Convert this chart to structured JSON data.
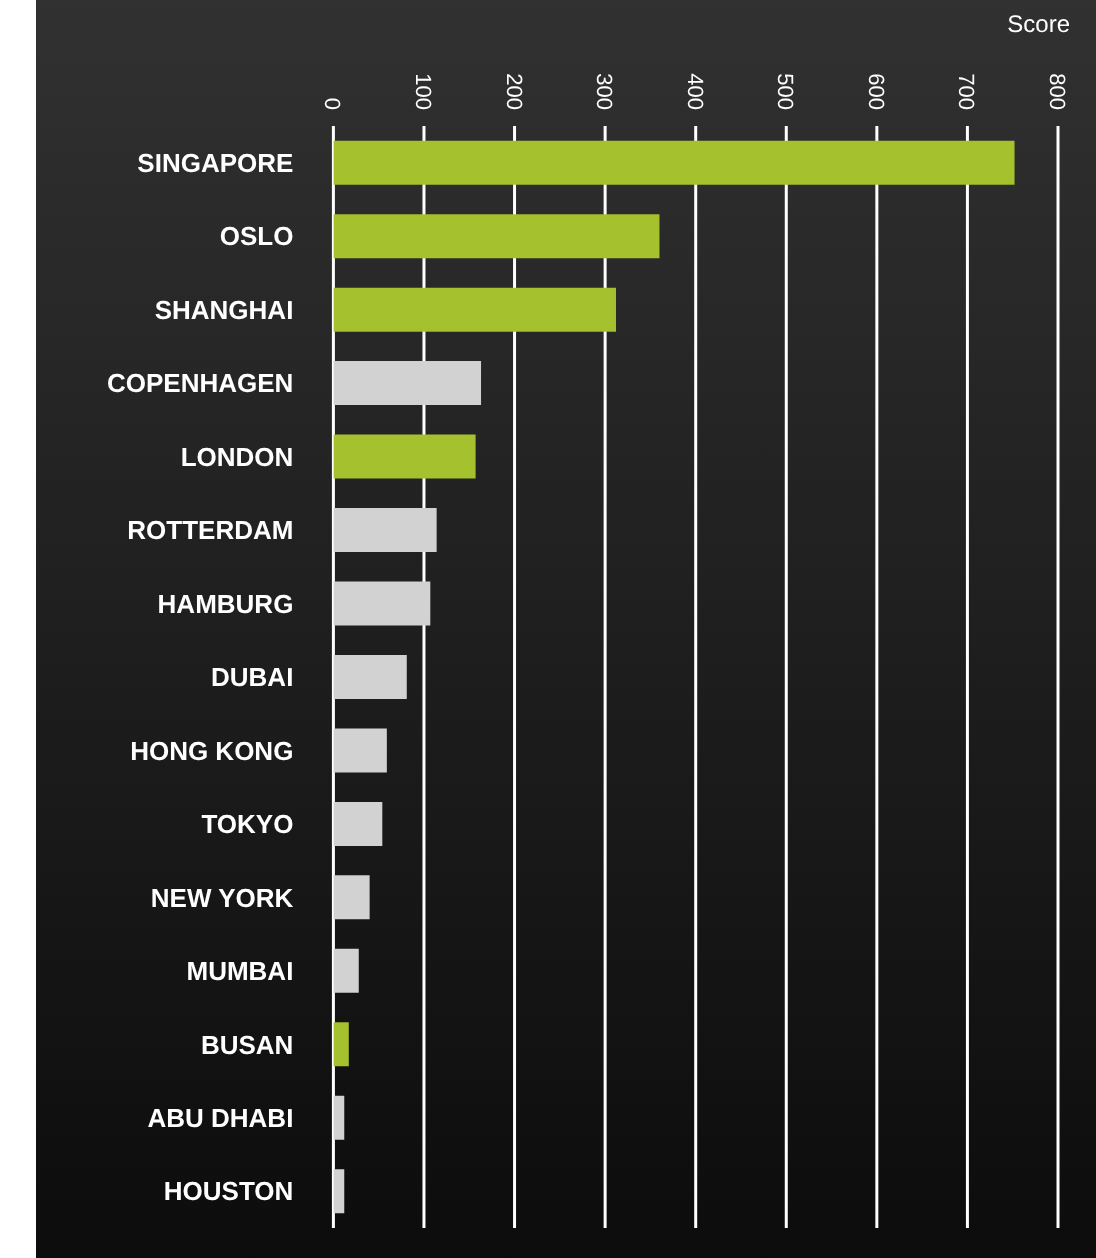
{
  "chart_data": {
    "type": "bar",
    "orientation": "horizontal",
    "xlabel": "Score",
    "categories": [
      "SINGAPORE",
      "OSLO",
      "SHANGHAI",
      "COPENHAGEN",
      "LONDON",
      "ROTTERDAM",
      "HAMBURG",
      "DUBAI",
      "HONG KONG",
      "TOKYO",
      "NEW YORK",
      "MUMBAI",
      "BUSAN",
      "ABU DHABI",
      "HOUSTON"
    ],
    "values": [
      752,
      360,
      312,
      163,
      157,
      114,
      107,
      81,
      59,
      54,
      40,
      28,
      17,
      12,
      12
    ],
    "colors": [
      "#a5c12e",
      "#a5c12e",
      "#a5c12e",
      "#d2d2d2",
      "#a5c12e",
      "#d2d2d2",
      "#d2d2d2",
      "#d2d2d2",
      "#d2d2d2",
      "#d2d2d2",
      "#d2d2d2",
      "#d2d2d2",
      "#a5c12e",
      "#d2d2d2",
      "#d2d2d2"
    ],
    "xlim": [
      0,
      800
    ],
    "xticks": [
      0,
      100,
      200,
      300,
      400,
      500,
      600,
      700,
      800
    ],
    "grid": "x"
  }
}
